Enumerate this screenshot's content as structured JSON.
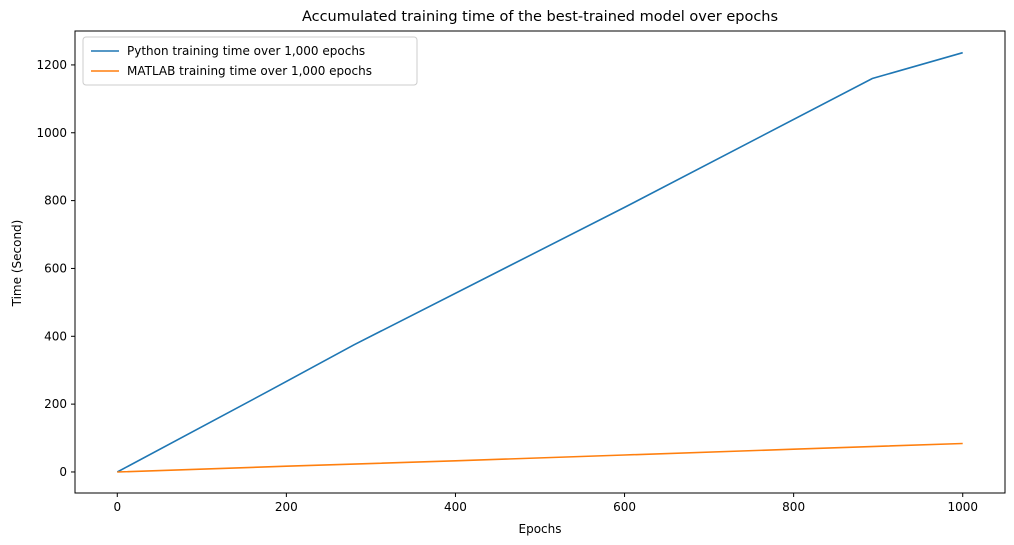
{
  "chart_data": {
    "type": "line",
    "title": "Accumulated training time of the best-trained model over epochs",
    "xlabel": "Epochs",
    "ylabel": "Time (Second)",
    "xlim": [
      -50,
      1050
    ],
    "ylim": [
      -62,
      1300
    ],
    "xticks": [
      0,
      200,
      400,
      600,
      800,
      1000
    ],
    "yticks": [
      0,
      200,
      400,
      600,
      800,
      1000,
      1200
    ],
    "grid": false,
    "legend_position": "top-left",
    "series": [
      {
        "name": "Python training time over 1,000 epochs",
        "color": "#1f77b4",
        "x": [
          0,
          180,
          280,
          600,
          893,
          1000
        ],
        "y": [
          0,
          240,
          375,
          780,
          1160,
          1236
        ]
      },
      {
        "name": "MATLAB training time over 1,000 epochs",
        "color": "#ff7f0e",
        "x": [
          0,
          200,
          400,
          600,
          800,
          1000
        ],
        "y": [
          0,
          17,
          33,
          50,
          67,
          84
        ]
      }
    ]
  }
}
